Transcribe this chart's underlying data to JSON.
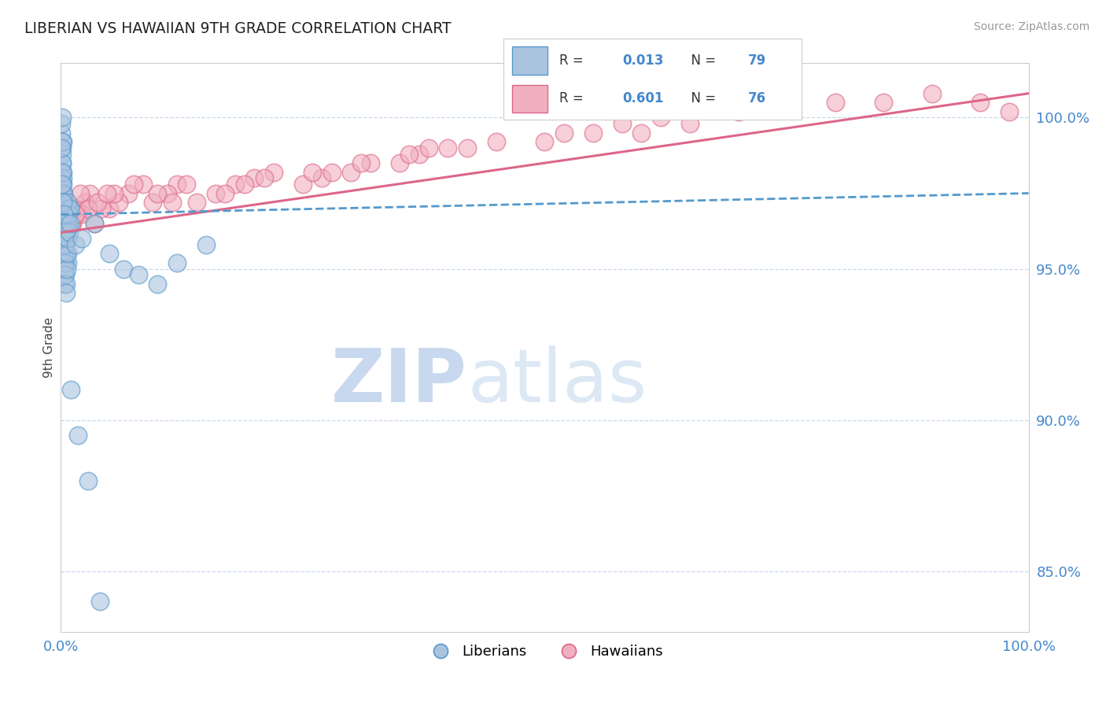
{
  "title": "LIBERIAN VS HAWAIIAN 9TH GRADE CORRELATION CHART",
  "source_text": "Source: ZipAtlas.com",
  "ylabel": "9th Grade",
  "legend_labels": [
    "Liberians",
    "Hawaiians"
  ],
  "blue_R": "0.013",
  "blue_N": "79",
  "pink_R": "0.601",
  "pink_N": "76",
  "blue_color": "#aac4e0",
  "pink_color": "#f0b0c0",
  "blue_edge_color": "#5599cc",
  "pink_edge_color": "#dd6688",
  "blue_line_color": "#5599cc",
  "pink_line_color": "#dd6688",
  "grid_color": "#c8d8e8",
  "right_axis_color": "#4488cc",
  "xlim": [
    0.0,
    100.0
  ],
  "ylim": [
    83.0,
    101.8
  ],
  "blue_scatter_x": [
    0.05,
    0.08,
    0.1,
    0.12,
    0.15,
    0.18,
    0.2,
    0.22,
    0.25,
    0.28,
    0.3,
    0.32,
    0.35,
    0.38,
    0.4,
    0.42,
    0.45,
    0.48,
    0.5,
    0.55,
    0.6,
    0.65,
    0.7,
    0.8,
    0.9,
    0.06,
    0.09,
    0.11,
    0.13,
    0.16,
    0.19,
    0.21,
    0.23,
    0.26,
    0.29,
    0.31,
    0.33,
    0.36,
    0.39,
    0.41,
    0.43,
    0.46,
    0.49,
    0.51,
    0.56,
    0.61,
    0.66,
    0.71,
    0.81,
    0.91,
    0.07,
    0.14,
    0.17,
    0.24,
    0.27,
    0.34,
    0.37,
    0.44,
    0.47,
    0.54,
    0.57,
    0.64,
    0.67,
    0.74,
    0.84,
    0.94,
    1.5,
    2.2,
    3.5,
    5.0,
    6.5,
    8.0,
    10.0,
    12.0,
    15.0,
    1.0,
    1.8,
    2.8,
    4.0
  ],
  "blue_scatter_y": [
    97.5,
    98.0,
    98.5,
    99.0,
    98.8,
    99.2,
    97.8,
    98.2,
    97.0,
    97.5,
    96.8,
    97.2,
    96.5,
    97.0,
    96.2,
    96.8,
    96.0,
    96.5,
    95.8,
    96.2,
    95.5,
    96.0,
    95.2,
    96.5,
    97.0,
    99.5,
    99.8,
    100.0,
    99.2,
    98.5,
    98.0,
    97.5,
    97.0,
    96.5,
    96.0,
    95.5,
    95.2,
    94.8,
    95.0,
    94.5,
    95.5,
    95.8,
    96.2,
    96.5,
    96.8,
    97.0,
    96.5,
    97.2,
    96.8,
    97.0,
    99.0,
    98.2,
    97.8,
    97.2,
    96.8,
    96.2,
    95.8,
    95.2,
    94.8,
    94.5,
    94.2,
    95.0,
    95.5,
    96.0,
    96.2,
    96.5,
    95.8,
    96.0,
    96.5,
    95.5,
    95.0,
    94.8,
    94.5,
    95.2,
    95.8,
    91.0,
    89.5,
    88.0,
    84.0
  ],
  "pink_scatter_x": [
    0.15,
    0.3,
    0.5,
    0.8,
    1.2,
    1.8,
    2.5,
    3.5,
    5.0,
    7.0,
    9.5,
    12.0,
    16.0,
    20.0,
    25.0,
    30.0,
    35.0,
    40.0,
    50.0,
    60.0,
    0.25,
    0.45,
    0.75,
    1.1,
    1.6,
    2.2,
    3.0,
    4.2,
    6.0,
    8.5,
    11.0,
    14.0,
    18.0,
    22.0,
    27.0,
    32.0,
    37.0,
    45.0,
    55.0,
    65.0,
    0.2,
    0.4,
    0.65,
    1.0,
    1.4,
    2.0,
    2.8,
    3.8,
    5.5,
    7.5,
    10.0,
    13.0,
    17.0,
    21.0,
    26.0,
    31.0,
    36.0,
    42.0,
    52.0,
    62.0,
    70.0,
    75.0,
    80.0,
    85.0,
    90.0,
    95.0,
    98.0,
    28.0,
    0.35,
    0.6,
    1.5,
    4.8,
    11.5,
    19.0,
    38.0,
    58.0
  ],
  "pink_scatter_y": [
    96.5,
    96.8,
    96.2,
    97.0,
    96.5,
    96.8,
    97.2,
    96.5,
    97.0,
    97.5,
    97.2,
    97.8,
    97.5,
    98.0,
    97.8,
    98.2,
    98.5,
    99.0,
    99.2,
    99.5,
    96.8,
    97.2,
    97.0,
    96.5,
    97.0,
    96.8,
    97.5,
    97.0,
    97.2,
    97.8,
    97.5,
    97.2,
    97.8,
    98.2,
    98.0,
    98.5,
    98.8,
    99.2,
    99.5,
    99.8,
    97.0,
    96.5,
    97.2,
    97.0,
    96.8,
    97.5,
    97.0,
    97.2,
    97.5,
    97.8,
    97.5,
    97.8,
    97.5,
    98.0,
    98.2,
    98.5,
    98.8,
    99.0,
    99.5,
    100.0,
    100.2,
    100.5,
    100.5,
    100.5,
    100.8,
    100.5,
    100.2,
    98.2,
    96.2,
    96.5,
    96.8,
    97.5,
    97.2,
    97.8,
    99.0,
    99.8
  ],
  "blue_trend_x": [
    0.0,
    100.0
  ],
  "blue_trend_y": [
    96.8,
    97.5
  ],
  "pink_trend_x": [
    0.0,
    100.0
  ],
  "pink_trend_y": [
    96.2,
    100.8
  ],
  "right_yticks": [
    85.0,
    90.0,
    95.0,
    100.0
  ],
  "right_ytick_labels": [
    "85.0%",
    "90.0%",
    "95.0%",
    "100.0%"
  ],
  "xtick_positions": [
    0.0,
    20.0,
    40.0,
    60.0,
    80.0,
    100.0
  ],
  "xtick_labels_show": [
    "0.0%",
    "",
    "",
    "",
    "",
    "100.0%"
  ],
  "watermark_zip": "ZIP",
  "watermark_atlas": "atlas",
  "watermark_color": "#dce8f5",
  "background_color": "#ffffff"
}
